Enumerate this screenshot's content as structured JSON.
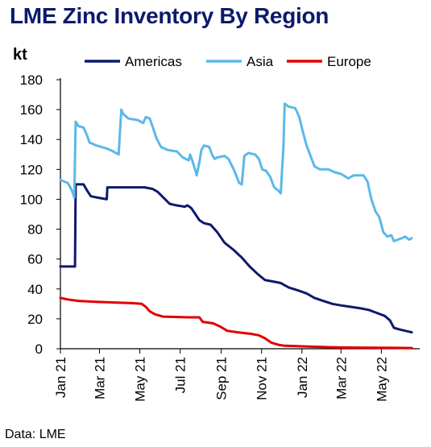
{
  "chart_data": {
    "type": "line",
    "title": "LME Zinc Inventory By Region",
    "ylabel": "kt",
    "xlabel": "",
    "source": "Data: LME",
    "ylim": [
      0,
      180
    ],
    "yticks": [
      0,
      20,
      40,
      60,
      80,
      100,
      120,
      140,
      160,
      180
    ],
    "xlim": [
      "2021-01-01",
      "2022-06-28"
    ],
    "xticks": [
      {
        "date": "2021-01-01",
        "label": "Jan 21"
      },
      {
        "date": "2021-03-01",
        "label": "Mar 21"
      },
      {
        "date": "2021-05-01",
        "label": "May 21"
      },
      {
        "date": "2021-07-01",
        "label": "Jul 21"
      },
      {
        "date": "2021-09-01",
        "label": "Sep 21"
      },
      {
        "date": "2021-11-01",
        "label": "Nov 21"
      },
      {
        "date": "2022-01-01",
        "label": "Jan 22"
      },
      {
        "date": "2022-03-01",
        "label": "Mar 22"
      },
      {
        "date": "2022-05-01",
        "label": "May 22"
      }
    ],
    "grid": false,
    "legend_position": "top",
    "series": [
      {
        "name": "Americas",
        "color": "#0d1a6b",
        "points": [
          [
            "2021-01-01",
            55
          ],
          [
            "2021-01-23",
            55
          ],
          [
            "2021-01-24",
            110
          ],
          [
            "2021-02-05",
            110
          ],
          [
            "2021-02-10",
            106
          ],
          [
            "2021-02-16",
            102
          ],
          [
            "2021-02-28",
            101
          ],
          [
            "2021-03-12",
            100
          ],
          [
            "2021-03-13",
            108
          ],
          [
            "2021-04-10",
            108
          ],
          [
            "2021-05-08",
            108
          ],
          [
            "2021-05-20",
            107
          ],
          [
            "2021-05-28",
            105
          ],
          [
            "2021-06-06",
            101
          ],
          [
            "2021-06-15",
            97
          ],
          [
            "2021-06-25",
            96
          ],
          [
            "2021-07-08",
            95
          ],
          [
            "2021-07-12",
            96
          ],
          [
            "2021-07-18",
            94
          ],
          [
            "2021-07-24",
            90
          ],
          [
            "2021-07-30",
            86
          ],
          [
            "2021-08-06",
            84
          ],
          [
            "2021-08-16",
            83
          ],
          [
            "2021-08-26",
            78
          ],
          [
            "2021-09-06",
            71
          ],
          [
            "2021-09-20",
            66
          ],
          [
            "2021-10-02",
            61
          ],
          [
            "2021-10-14",
            55
          ],
          [
            "2021-10-26",
            50
          ],
          [
            "2021-11-06",
            46
          ],
          [
            "2021-11-18",
            45
          ],
          [
            "2021-11-30",
            44
          ],
          [
            "2021-12-12",
            41
          ],
          [
            "2021-12-26",
            39
          ],
          [
            "2022-01-08",
            37
          ],
          [
            "2022-01-20",
            34
          ],
          [
            "2022-02-02",
            32
          ],
          [
            "2022-02-16",
            30
          ],
          [
            "2022-03-01",
            29
          ],
          [
            "2022-03-16",
            28
          ],
          [
            "2022-03-31",
            27
          ],
          [
            "2022-04-12",
            26
          ],
          [
            "2022-04-24",
            24
          ],
          [
            "2022-05-06",
            22
          ],
          [
            "2022-05-14",
            19
          ],
          [
            "2022-05-20",
            14
          ],
          [
            "2022-05-28",
            13
          ],
          [
            "2022-06-06",
            12
          ],
          [
            "2022-06-16",
            11
          ]
        ]
      },
      {
        "name": "Asia",
        "color": "#5cb8e8",
        "points": [
          [
            "2021-01-01",
            113
          ],
          [
            "2021-01-06",
            112
          ],
          [
            "2021-01-12",
            111
          ],
          [
            "2021-01-16",
            108
          ],
          [
            "2021-01-20",
            104
          ],
          [
            "2021-01-22",
            101
          ],
          [
            "2021-01-24",
            152
          ],
          [
            "2021-01-28",
            149
          ],
          [
            "2021-02-05",
            148
          ],
          [
            "2021-02-10",
            143
          ],
          [
            "2021-02-14",
            138
          ],
          [
            "2021-02-24",
            136
          ],
          [
            "2021-03-12",
            134
          ],
          [
            "2021-03-22",
            132
          ],
          [
            "2021-03-30",
            130
          ],
          [
            "2021-04-01",
            145
          ],
          [
            "2021-04-03",
            160
          ],
          [
            "2021-04-06",
            157
          ],
          [
            "2021-04-14",
            154
          ],
          [
            "2021-04-28",
            153
          ],
          [
            "2021-05-06",
            151
          ],
          [
            "2021-05-10",
            155
          ],
          [
            "2021-05-16",
            154
          ],
          [
            "2021-05-20",
            149
          ],
          [
            "2021-05-26",
            141
          ],
          [
            "2021-06-02",
            135
          ],
          [
            "2021-06-12",
            133
          ],
          [
            "2021-06-26",
            132
          ],
          [
            "2021-07-05",
            128
          ],
          [
            "2021-07-14",
            126
          ],
          [
            "2021-07-16",
            130
          ],
          [
            "2021-07-20",
            125
          ],
          [
            "2021-07-24",
            119
          ],
          [
            "2021-07-26",
            116
          ],
          [
            "2021-07-30",
            125
          ],
          [
            "2021-08-02",
            133
          ],
          [
            "2021-08-06",
            136
          ],
          [
            "2021-08-14",
            135
          ],
          [
            "2021-08-18",
            130
          ],
          [
            "2021-08-22",
            127
          ],
          [
            "2021-08-26",
            128
          ],
          [
            "2021-09-06",
            129
          ],
          [
            "2021-09-12",
            127
          ],
          [
            "2021-09-20",
            120
          ],
          [
            "2021-09-28",
            111
          ],
          [
            "2021-10-02",
            110
          ],
          [
            "2021-10-06",
            129
          ],
          [
            "2021-10-12",
            131
          ],
          [
            "2021-10-22",
            130
          ],
          [
            "2021-10-28",
            127
          ],
          [
            "2021-11-02",
            120
          ],
          [
            "2021-11-08",
            119
          ],
          [
            "2021-11-14",
            115
          ],
          [
            "2021-11-20",
            108
          ],
          [
            "2021-11-26",
            106
          ],
          [
            "2021-11-30",
            104
          ],
          [
            "2021-12-04",
            135
          ],
          [
            "2021-12-06",
            164
          ],
          [
            "2021-12-12",
            162
          ],
          [
            "2021-12-22",
            161
          ],
          [
            "2021-12-28",
            155
          ],
          [
            "2022-01-02",
            146
          ],
          [
            "2022-01-08",
            136
          ],
          [
            "2022-01-14",
            129
          ],
          [
            "2022-01-20",
            122
          ],
          [
            "2022-01-28",
            120
          ],
          [
            "2022-02-10",
            120
          ],
          [
            "2022-02-20",
            118
          ],
          [
            "2022-03-01",
            117
          ],
          [
            "2022-03-12",
            114
          ],
          [
            "2022-03-20",
            116
          ],
          [
            "2022-04-04",
            116
          ],
          [
            "2022-04-10",
            112
          ],
          [
            "2022-04-16",
            100
          ],
          [
            "2022-04-22",
            92
          ],
          [
            "2022-04-28",
            88
          ],
          [
            "2022-05-04",
            78
          ],
          [
            "2022-05-10",
            75
          ],
          [
            "2022-05-16",
            76
          ],
          [
            "2022-05-20",
            72
          ],
          [
            "2022-05-26",
            73
          ],
          [
            "2022-06-01",
            74
          ],
          [
            "2022-06-06",
            75
          ],
          [
            "2022-06-12",
            73
          ],
          [
            "2022-06-16",
            74
          ]
        ]
      },
      {
        "name": "Europe",
        "color": "#e00000",
        "points": [
          [
            "2021-01-01",
            34
          ],
          [
            "2021-01-12",
            33
          ],
          [
            "2021-01-28",
            32
          ],
          [
            "2021-02-20",
            31.5
          ],
          [
            "2021-03-20",
            31
          ],
          [
            "2021-04-20",
            30.5
          ],
          [
            "2021-05-04",
            30
          ],
          [
            "2021-05-10",
            28
          ],
          [
            "2021-05-16",
            25
          ],
          [
            "2021-05-24",
            23
          ],
          [
            "2021-06-05",
            21.5
          ],
          [
            "2021-07-15",
            21
          ],
          [
            "2021-07-30",
            21
          ],
          [
            "2021-08-04",
            18
          ],
          [
            "2021-08-20",
            17
          ],
          [
            "2021-08-30",
            15
          ],
          [
            "2021-09-10",
            12
          ],
          [
            "2021-09-26",
            11
          ],
          [
            "2021-10-15",
            10
          ],
          [
            "2021-10-28",
            9
          ],
          [
            "2021-11-06",
            7
          ],
          [
            "2021-11-16",
            4
          ],
          [
            "2021-11-28",
            2.5
          ],
          [
            "2021-12-06",
            2
          ],
          [
            "2022-01-10",
            1.5
          ],
          [
            "2022-02-14",
            1
          ],
          [
            "2022-03-10",
            0.8
          ],
          [
            "2022-04-20",
            0.7
          ],
          [
            "2022-05-20",
            0.6
          ],
          [
            "2022-06-16",
            0.5
          ]
        ]
      }
    ]
  }
}
